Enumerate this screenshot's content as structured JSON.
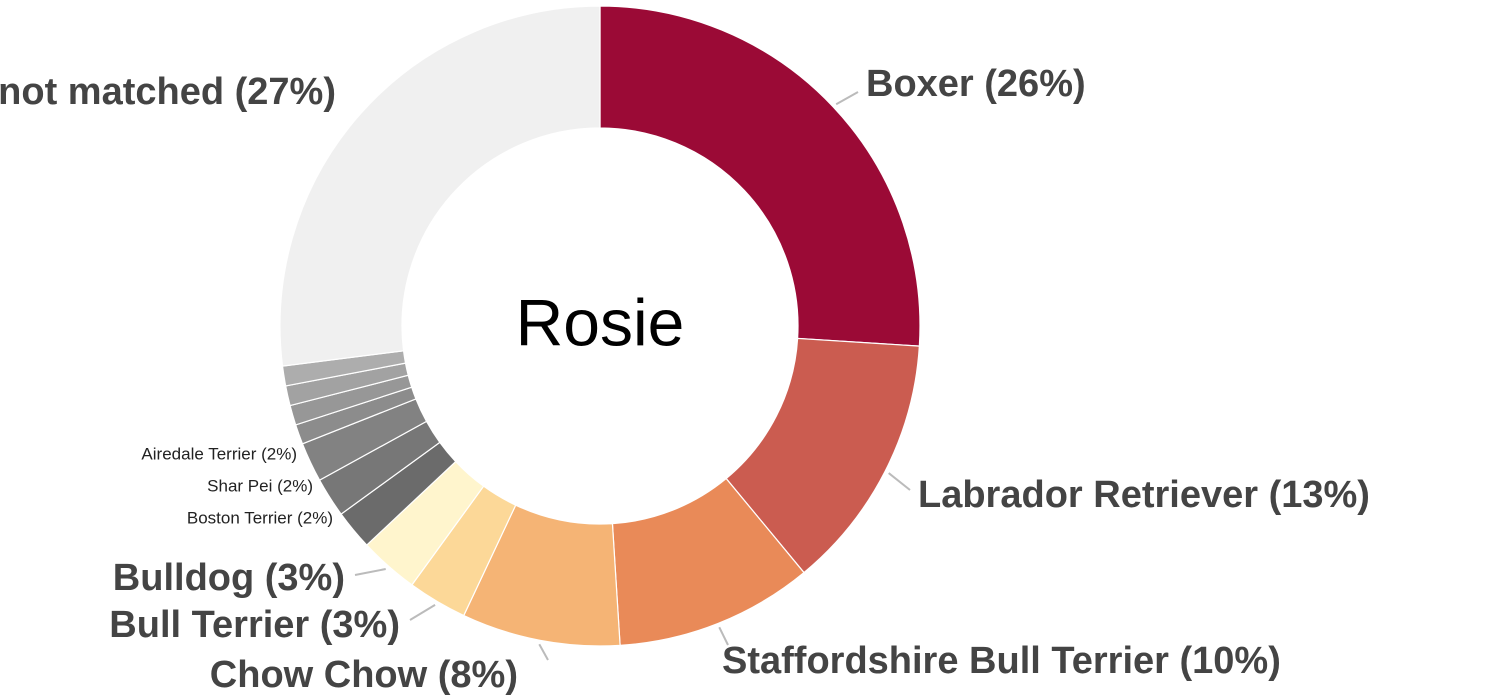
{
  "chart_data": {
    "type": "donut",
    "title": "Rosie",
    "categories": [
      "Boxer (26%)",
      "Labrador Retriever (13%)",
      "Staffordshire Bull Terrier (10%)",
      "Chow Chow (8%)",
      "Bull Terrier (3%)",
      "Bulldog (3%)",
      "Boston Terrier (2%)",
      "Shar Pei (2%)",
      "Airedale Terrier (2%)",
      null,
      null,
      null,
      null,
      "not matched (27%)"
    ],
    "values": [
      26,
      13,
      10,
      8,
      3,
      3,
      2,
      2,
      2,
      1,
      1,
      1,
      1,
      27
    ],
    "colors": [
      "#9b0a36",
      "#cb5c50",
      "#e98a58",
      "#f5b475",
      "#fcd898",
      "#fff5cd",
      "#6b6b6b",
      "#777777",
      "#828282",
      "#8c8c8c",
      "#979797",
      "#a2a2a2",
      "#adadad",
      "#f0f0f0"
    ]
  }
}
